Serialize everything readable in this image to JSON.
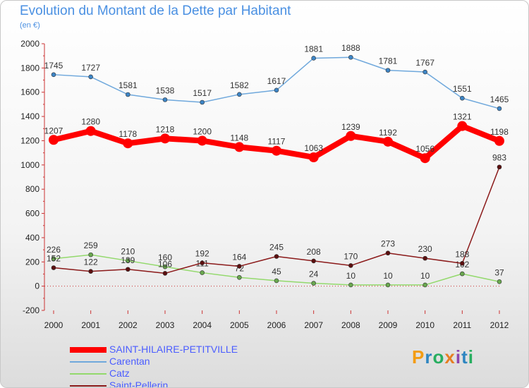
{
  "chart_data": {
    "type": "line",
    "title": "Evolution du Montant de la Dette par Habitant",
    "subtitle": "(en €)",
    "categories": [
      "2000",
      "2001",
      "2002",
      "2003",
      "2004",
      "2005",
      "2006",
      "2007",
      "2008",
      "2009",
      "2010",
      "2011",
      "2012"
    ],
    "ylim": [
      -200,
      2000
    ],
    "yticks": [
      "-200",
      "0",
      "200",
      "400",
      "600",
      "800",
      "1000",
      "1200",
      "1400",
      "1600",
      "1800",
      "2000"
    ],
    "grid": false,
    "legend_position": "bottom-left",
    "series": [
      {
        "name": "SAINT-HILAIRE-PETITVILLE",
        "values": [
          1207,
          1280,
          1178,
          1218,
          1200,
          1148,
          1117,
          1063,
          1239,
          1192,
          1056,
          1321,
          1198
        ],
        "color": "#ff0000",
        "marker": "#ff0000",
        "width": 8
      },
      {
        "name": "Carentan",
        "values": [
          1745,
          1727,
          1581,
          1538,
          1517,
          1582,
          1617,
          1881,
          1888,
          1781,
          1767,
          1551,
          1465
        ],
        "color": "#6fa8dc",
        "marker": "#3d85c6",
        "width": 1.5
      },
      {
        "name": "Catz",
        "values": [
          226,
          259,
          210,
          160,
          111,
          72,
          45,
          24,
          10,
          10,
          10,
          102,
          37
        ],
        "color": "#93d96c",
        "marker": "#6aa84f",
        "width": 1.5
      },
      {
        "name": "Saint-Pellerin",
        "values": [
          152,
          122,
          139,
          106,
          192,
          164,
          245,
          208,
          170,
          273,
          230,
          188,
          983
        ],
        "color": "#8b1a1a",
        "marker": "#5c0f0f",
        "width": 1.5
      }
    ]
  },
  "brand": {
    "letters": [
      "P",
      "r",
      "o",
      "x",
      "i",
      "t",
      "i"
    ],
    "colors": [
      "#f39c12",
      "#2e86c1",
      "#27ae60",
      "#e67e22",
      "#8e44ad",
      "#2e86c1",
      "#27ae60"
    ]
  }
}
